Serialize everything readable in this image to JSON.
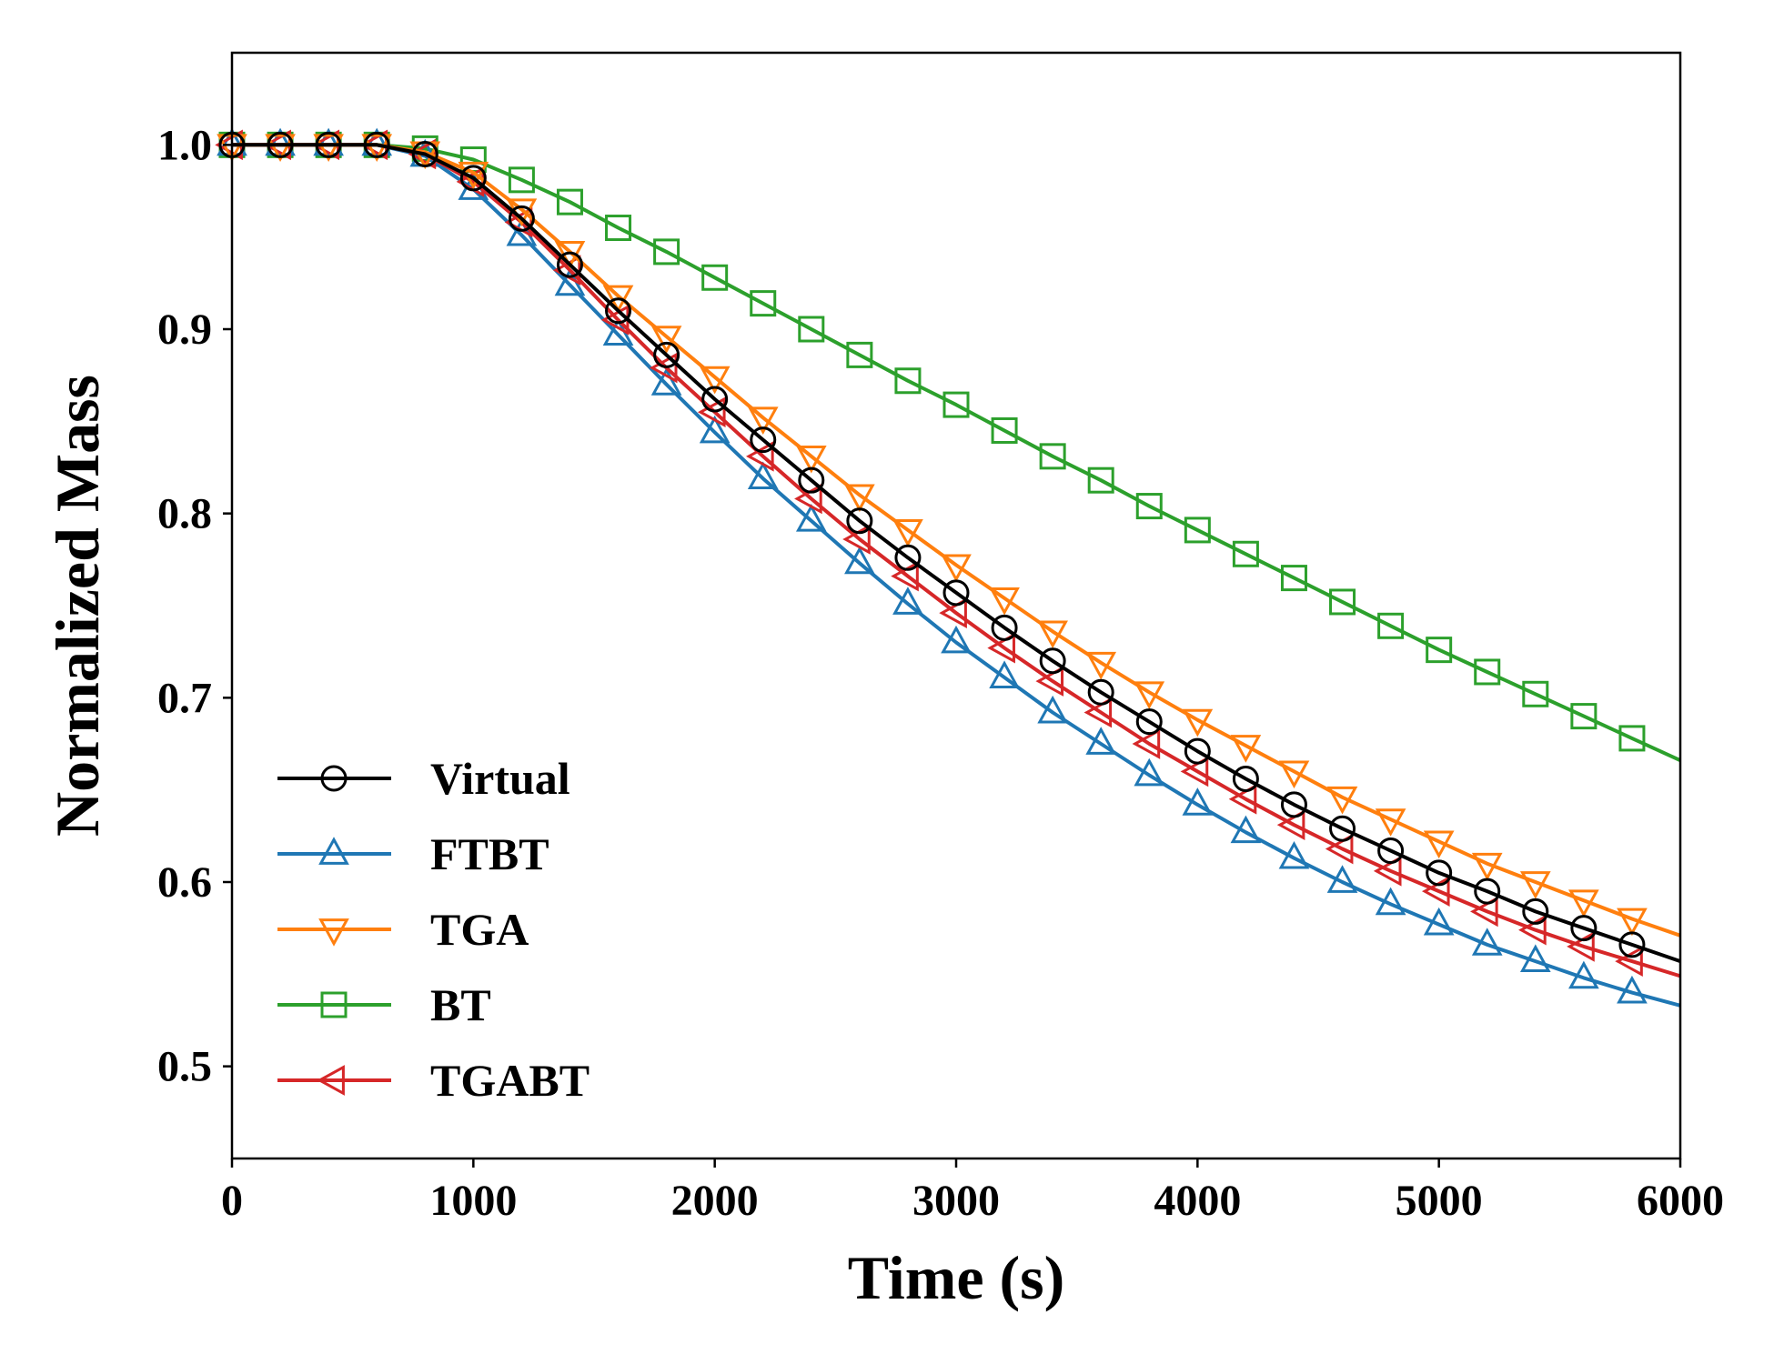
{
  "chart_data": {
    "type": "line",
    "xlabel": "Time (s)",
    "ylabel": "Normalized Mass",
    "xlim": [
      0,
      6000
    ],
    "ylim": [
      0.45,
      1.05
    ],
    "xticks": [
      0,
      1000,
      2000,
      3000,
      4000,
      5000,
      6000
    ],
    "xtick_labels": [
      "0",
      "1000",
      "2000",
      "3000",
      "4000",
      "5000",
      "6000"
    ],
    "yticks": [
      0.5,
      0.6,
      0.7,
      0.8,
      0.9,
      1.0
    ],
    "ytick_labels": [
      "0.5",
      "0.6",
      "0.7",
      "0.8",
      "0.9",
      "1.0"
    ],
    "grid": false,
    "legend_position": "lower-left",
    "x": [
      0,
      200,
      400,
      600,
      800,
      1000,
      1200,
      1400,
      1600,
      1800,
      2000,
      2200,
      2400,
      2600,
      2800,
      3000,
      3200,
      3400,
      3600,
      3800,
      4000,
      4200,
      4400,
      4600,
      4800,
      5000,
      5200,
      5400,
      5600,
      5800,
      6000
    ],
    "marker_x": [
      0,
      200,
      400,
      600,
      800,
      1000,
      1200,
      1400,
      1600,
      1800,
      2000,
      2200,
      2400,
      2600,
      2800,
      3000,
      3200,
      3400,
      3600,
      3800,
      4000,
      4200,
      4400,
      4600,
      4800,
      5000,
      5200,
      5400,
      5600,
      5800
    ],
    "series": [
      {
        "name": "Virtual",
        "color": "#000000",
        "marker": "circle",
        "values": [
          1.0,
          1.0,
          1.0,
          1.0,
          0.995,
          0.982,
          0.96,
          0.935,
          0.91,
          0.886,
          0.862,
          0.84,
          0.818,
          0.796,
          0.776,
          0.757,
          0.738,
          0.72,
          0.703,
          0.687,
          0.671,
          0.656,
          0.642,
          0.629,
          0.617,
          0.605,
          0.595,
          0.584,
          0.575,
          0.566,
          0.557
        ]
      },
      {
        "name": "FTBT",
        "color": "#1f77b4",
        "marker": "triangle-up",
        "values": [
          1.0,
          1.0,
          1.0,
          1.0,
          0.994,
          0.976,
          0.951,
          0.924,
          0.897,
          0.87,
          0.844,
          0.819,
          0.796,
          0.773,
          0.751,
          0.73,
          0.711,
          0.692,
          0.675,
          0.658,
          0.642,
          0.627,
          0.613,
          0.6,
          0.588,
          0.577,
          0.566,
          0.557,
          0.548,
          0.54,
          0.533
        ]
      },
      {
        "name": "TGA",
        "color": "#ff7f0e",
        "marker": "triangle-down",
        "values": [
          1.0,
          1.0,
          1.0,
          1.0,
          0.996,
          0.985,
          0.965,
          0.942,
          0.918,
          0.896,
          0.874,
          0.852,
          0.831,
          0.81,
          0.791,
          0.772,
          0.754,
          0.736,
          0.719,
          0.703,
          0.688,
          0.674,
          0.66,
          0.646,
          0.634,
          0.622,
          0.61,
          0.6,
          0.59,
          0.58,
          0.571
        ]
      },
      {
        "name": "BT",
        "color": "#2ca02c",
        "marker": "square",
        "values": [
          1.0,
          1.0,
          1.0,
          1.0,
          0.998,
          0.992,
          0.981,
          0.969,
          0.955,
          0.942,
          0.928,
          0.914,
          0.9,
          0.886,
          0.872,
          0.859,
          0.845,
          0.831,
          0.818,
          0.804,
          0.791,
          0.778,
          0.765,
          0.752,
          0.739,
          0.726,
          0.714,
          0.702,
          0.69,
          0.678,
          0.666
        ]
      },
      {
        "name": "TGABT",
        "color": "#d62728",
        "marker": "triangle-left",
        "values": [
          1.0,
          1.0,
          1.0,
          1.0,
          0.995,
          0.98,
          0.958,
          0.932,
          0.905,
          0.879,
          0.855,
          0.831,
          0.808,
          0.786,
          0.766,
          0.746,
          0.727,
          0.709,
          0.692,
          0.675,
          0.66,
          0.645,
          0.631,
          0.618,
          0.606,
          0.595,
          0.584,
          0.574,
          0.565,
          0.557,
          0.549
        ]
      }
    ]
  }
}
